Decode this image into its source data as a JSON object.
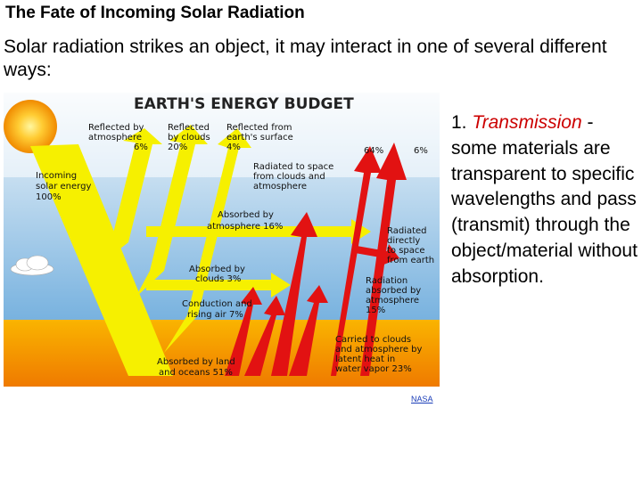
{
  "slide": {
    "title": "The Fate of Incoming Solar Radiation",
    "intro": "Solar radiation strikes an object, it may interact in one of several different ways:"
  },
  "figure": {
    "heading": "EARTH'S ENERGY BUDGET",
    "credit": "NASA",
    "labels": {
      "incoming": [
        "Incoming",
        "solar energy",
        "100%"
      ],
      "reflected_atmosphere": [
        "Reflected by",
        "atmosphere",
        "6%"
      ],
      "reflected_clouds": [
        "Reflected",
        "by clouds",
        "20%"
      ],
      "reflected_surface": [
        "Reflected from",
        "earth's surface",
        "4%"
      ],
      "pct_64": "64%",
      "pct_6": "6%",
      "radiated_space": [
        "Radiated to space",
        "from clouds and",
        "atmosphere"
      ],
      "absorbed_atmosphere": [
        "Absorbed by",
        "atmosphere 16%"
      ],
      "radiated_directly": [
        "Radiated",
        "directly",
        "to space",
        "from earth"
      ],
      "absorbed_clouds": [
        "Absorbed by",
        "clouds 3%"
      ],
      "radiation_absorbed": [
        "Radiation",
        "absorbed by",
        "atmosphere",
        "15%"
      ],
      "conduction": [
        "Conduction and",
        "rising air 7%"
      ],
      "carried_clouds": [
        "Carried to clouds",
        "and atmosphere by",
        "latent heat in",
        "water vapor 23%"
      ],
      "absorbed_land": [
        "Absorbed by land",
        "and oceans 51%"
      ]
    },
    "colors": {
      "sky_top": "#f2f7fb",
      "sky_bottom": "#7fb6e0",
      "ground_top": "#f9b000",
      "ground_bottom": "#f07b00",
      "solar_arrow": "#f5f000",
      "earth_arrow": "#e01010",
      "sun": "#f6a000"
    }
  },
  "side": {
    "number": "1.",
    "term": "Transmission",
    "text": " - some materials are transparent to specific wavelengths and pass (transmit) through the object/material without absorption."
  }
}
